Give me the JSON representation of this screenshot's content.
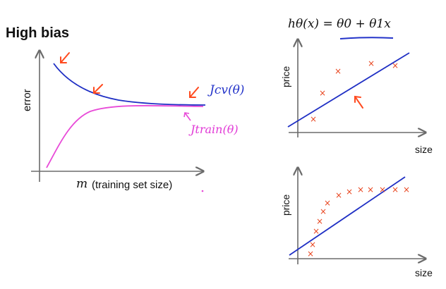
{
  "title": "High bias",
  "hypothesis": "hθ(x) = θ0 + θ1x",
  "learning_curve": {
    "ylabel": "error",
    "m_symbol": "m",
    "xlabel": "(training set size)",
    "cv_label": "Jcv(θ)",
    "train_label": "Jtrain(θ)",
    "colors": {
      "cv": "#1f2fc4",
      "train": "#e84bd8",
      "arrow": "#ff4a1f",
      "axis": "#6b6b6b"
    }
  },
  "top_plot": {
    "ylabel": "price",
    "xlabel": "size"
  },
  "bottom_plot": {
    "ylabel": "price",
    "xlabel": "size"
  }
}
